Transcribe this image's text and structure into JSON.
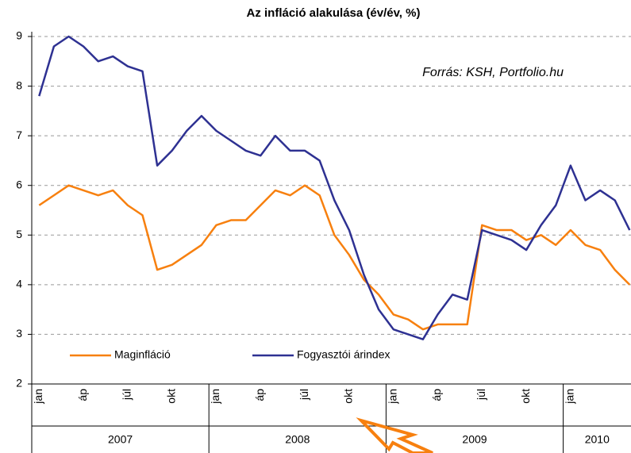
{
  "chart_data": {
    "type": "line",
    "title": "Az infláció alakulása (év/év, %)",
    "annotation": "Forrás: KSH, Portfolio.hu",
    "categories": [
      "jan",
      null,
      null,
      "áp",
      null,
      null,
      "júl",
      null,
      null,
      "okt",
      null,
      null,
      "jan",
      null,
      null,
      "áp",
      null,
      null,
      "júl",
      null,
      null,
      "okt",
      null,
      null,
      "jan",
      null,
      null,
      "áp",
      null,
      null,
      "júl",
      null,
      null,
      "okt",
      null,
      null,
      "jan",
      null,
      null,
      null,
      null
    ],
    "x_groups": [
      "2007",
      "2008",
      "2009",
      "2010"
    ],
    "series": [
      {
        "name": "Maginfláció",
        "color": "#f7800f",
        "values": [
          5.6,
          5.8,
          6.0,
          5.9,
          5.8,
          5.9,
          5.6,
          5.4,
          4.3,
          4.4,
          4.6,
          4.8,
          5.2,
          5.3,
          5.3,
          5.6,
          5.9,
          5.8,
          6.0,
          5.8,
          5.0,
          4.6,
          4.1,
          3.8,
          3.4,
          3.3,
          3.1,
          3.2,
          3.2,
          3.2,
          5.2,
          5.1,
          5.1,
          4.9,
          5.0,
          4.8,
          5.1,
          4.8,
          4.7,
          4.3,
          4.0
        ]
      },
      {
        "name": "Fogyasztói árindex",
        "color": "#2e3192",
        "values": [
          7.8,
          8.8,
          9.0,
          8.8,
          8.5,
          8.6,
          8.4,
          8.3,
          6.4,
          6.7,
          7.1,
          7.4,
          7.1,
          6.9,
          6.7,
          6.6,
          7.0,
          6.7,
          6.7,
          6.5,
          5.7,
          5.1,
          4.2,
          3.5,
          3.1,
          3.0,
          2.9,
          3.4,
          3.8,
          3.7,
          5.1,
          5.0,
          4.9,
          4.7,
          5.2,
          5.6,
          6.4,
          5.7,
          5.9,
          5.7,
          5.1
        ]
      }
    ],
    "ylim": [
      2,
      9
    ],
    "yticks": [
      2,
      3,
      4,
      5,
      6,
      7,
      8,
      9
    ],
    "grid": true,
    "legend": "lower left"
  }
}
